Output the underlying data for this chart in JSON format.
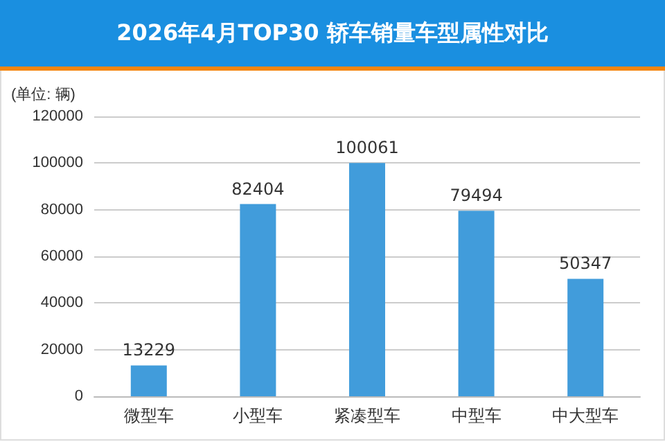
{
  "chart_data": {
    "type": "bar",
    "title": "2026年4月TOP30 轿车销量车型属性对比",
    "ylabel": "(单位: 辆)",
    "categories": [
      "微型车",
      "小型车",
      "紧凑型车",
      "中型车",
      "中大型车"
    ],
    "values": [
      13229,
      82404,
      100061,
      79494,
      50347
    ],
    "color": "#419cdb",
    "ylim": [
      0,
      120000
    ],
    "yticks": [
      0,
      20000,
      40000,
      60000,
      80000,
      100000,
      120000
    ],
    "grid": "y",
    "data_labels": true
  }
}
